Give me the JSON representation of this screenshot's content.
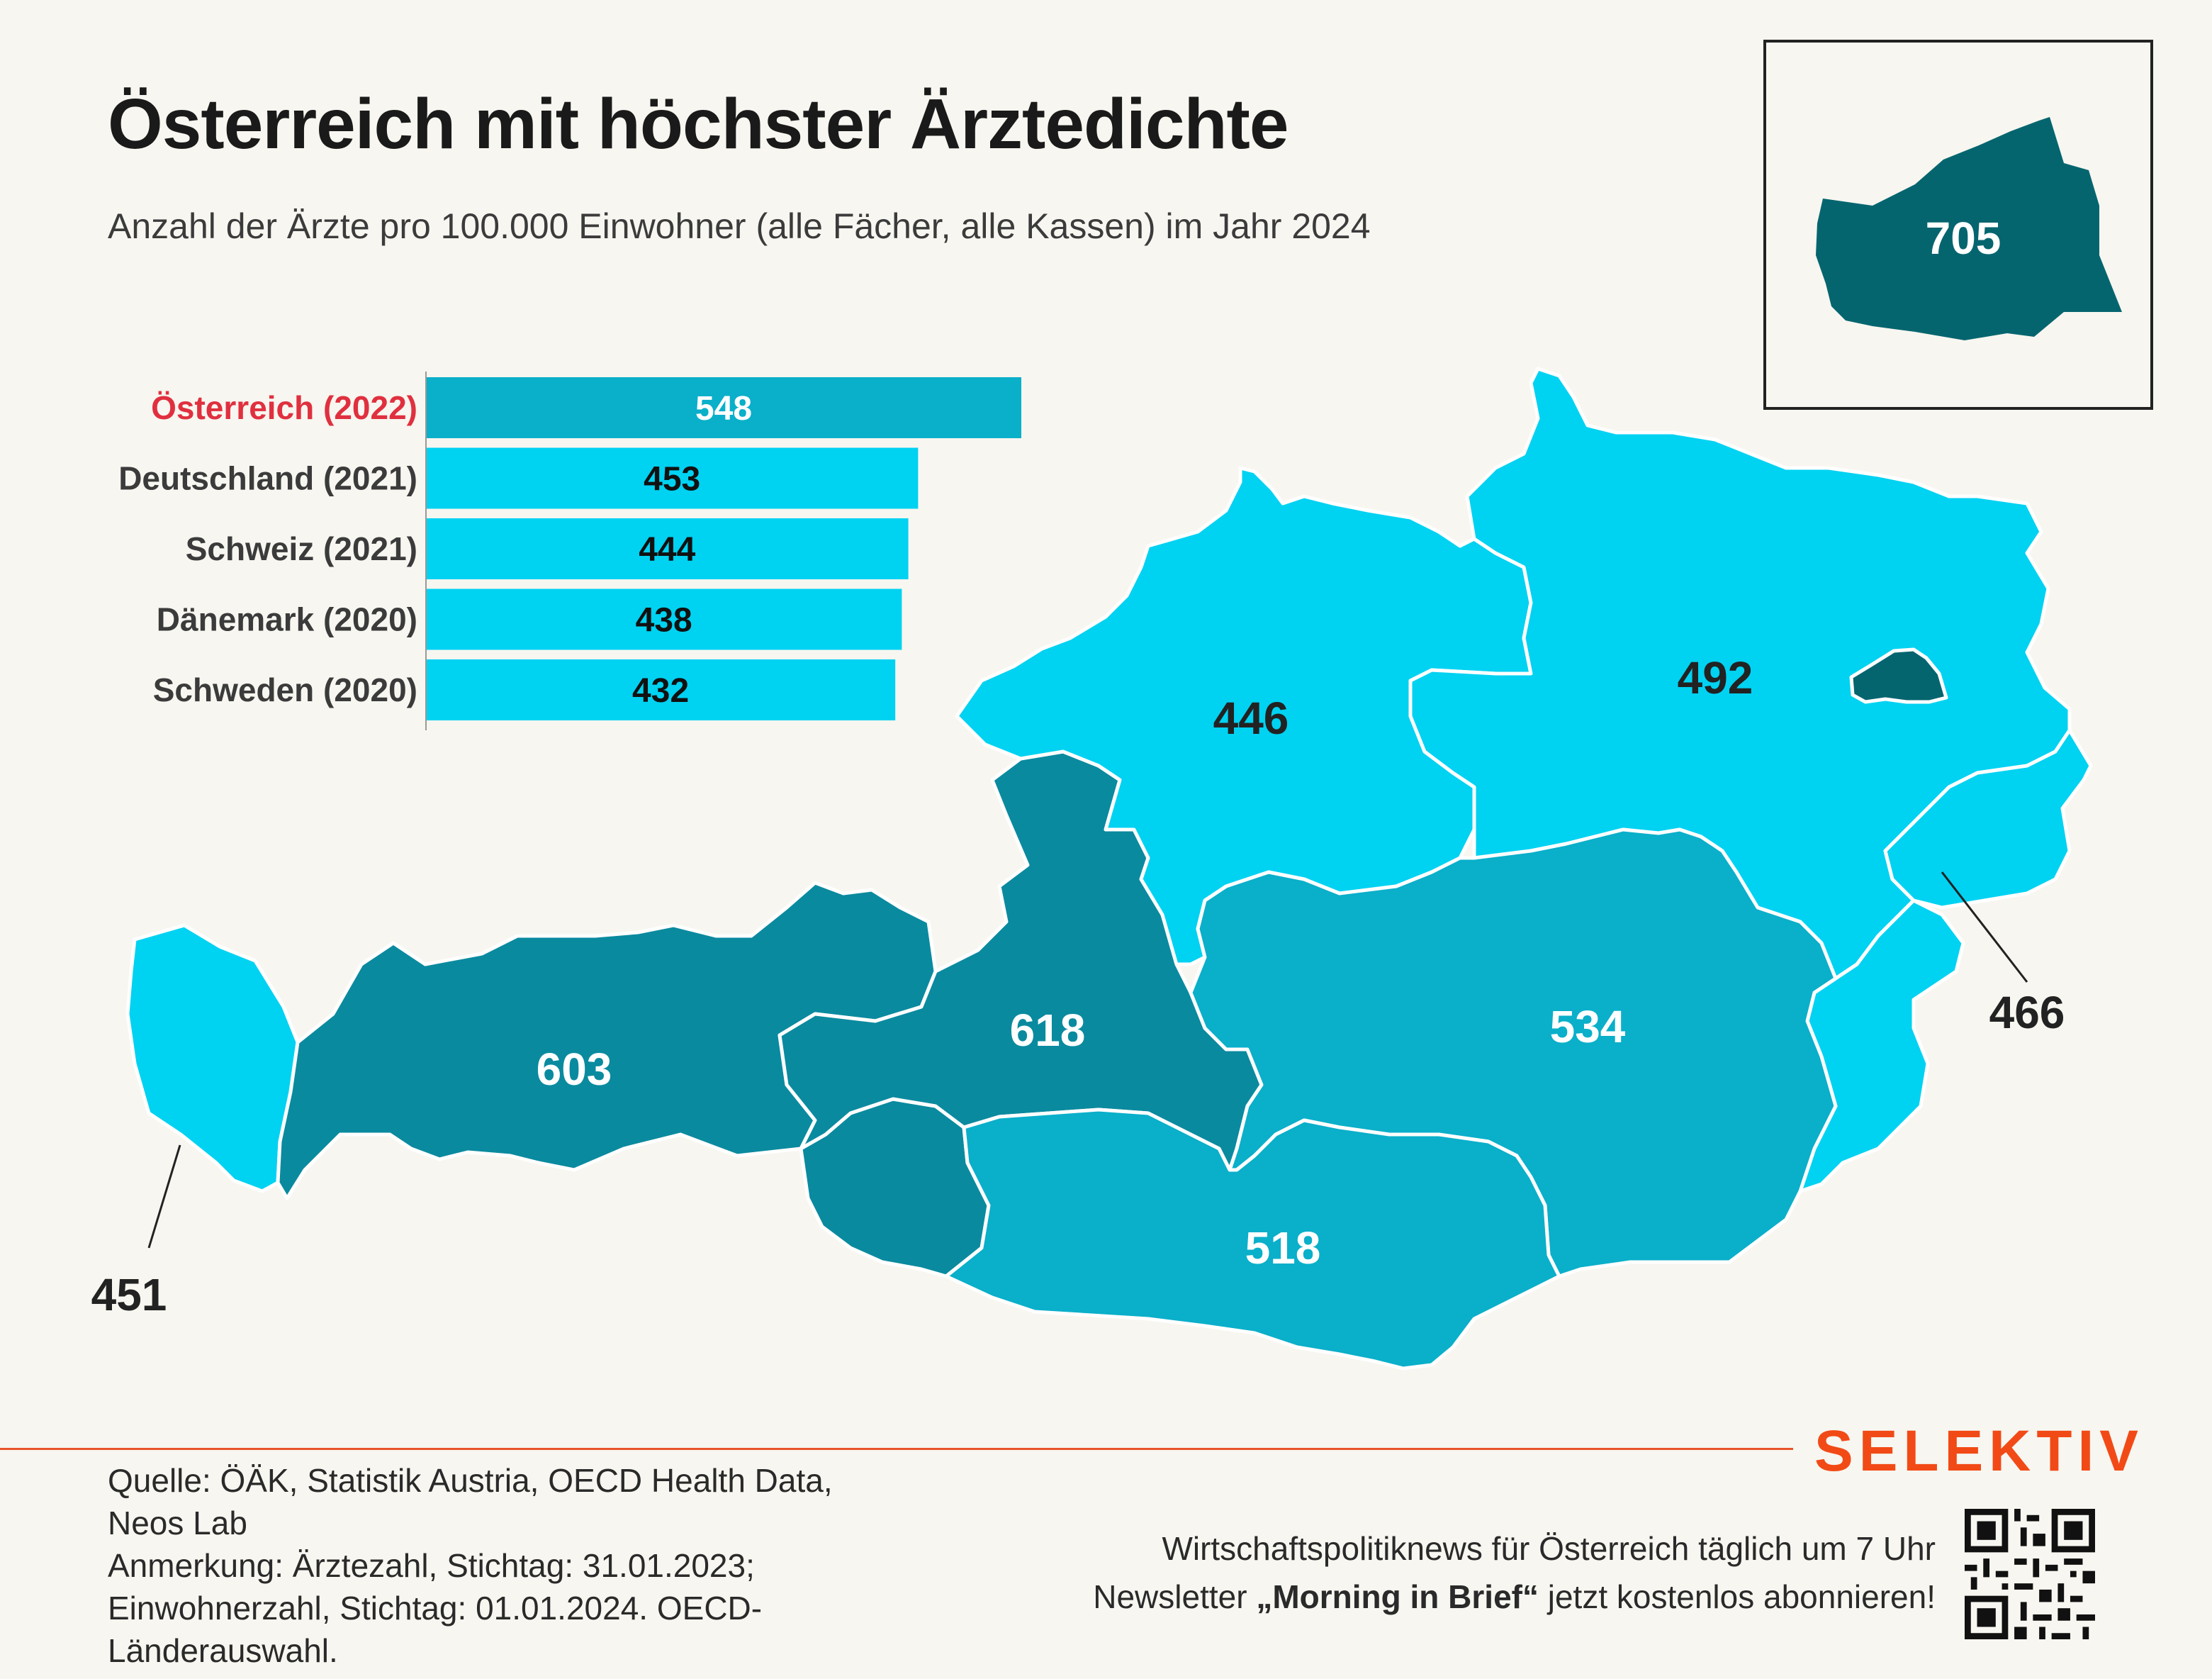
{
  "title": "Österreich mit höchster Ärztedichte",
  "subtitle": "Anzahl der Ärzte pro 100.000 Einwohner (alle Fächer, alle Kassen) im Jahr 2024",
  "colors": {
    "background": "#f7f6f0",
    "highlight_label": "#e0303f",
    "bar_highlight": "#0aafca",
    "bar_default": "#00d2f2",
    "region_light": "#00d2f2",
    "region_medium": "#0aafca",
    "region_dark": "#0a8a9f",
    "region_darkest": "#05656f",
    "brand": "#f24a16"
  },
  "chart_data": [
    {
      "type": "bar",
      "orientation": "horizontal",
      "categories": [
        "Österreich (2022)",
        "Deutschland (2021)",
        "Schweiz (2021)",
        "Dänemark (2020)",
        "Schweden (2020)"
      ],
      "values": [
        548,
        453,
        444,
        438,
        432
      ],
      "highlight": "Österreich (2022)"
    },
    {
      "type": "choropleth",
      "regions": [
        {
          "name": "Vorarlberg",
          "value": 451
        },
        {
          "name": "Tirol",
          "value": 603
        },
        {
          "name": "Salzburg",
          "value": 618
        },
        {
          "name": "Oberösterreich",
          "value": 446
        },
        {
          "name": "Niederösterreich",
          "value": 492
        },
        {
          "name": "Wien",
          "value": 705
        },
        {
          "name": "Burgenland",
          "value": 466
        },
        {
          "name": "Steiermark",
          "value": 534
        },
        {
          "name": "Kärnten",
          "value": 518
        },
        {
          "name": "Osttirol",
          "value": null
        }
      ]
    }
  ],
  "footer": {
    "source_lines": [
      "Quelle: ÖÄK, Statistik Austria, OECD Health Data,",
      "Neos Lab",
      "Anmerkung: Ärztezahl, Stichtag: 31.01.2023;",
      "Einwohnerzahl, Stichtag: 01.01.2024. OECD-",
      "Länderauswahl."
    ],
    "brand": "SELEKTIV",
    "promo_line1": "Wirtschaftspolitiknews für Österreich täglich um 7 Uhr",
    "promo_prefix": "Newsletter ",
    "promo_bold": "„Morning in Brief“",
    "promo_suffix": " jetzt kostenlos abonnieren!",
    "qr_icon": "qr-code-icon"
  }
}
